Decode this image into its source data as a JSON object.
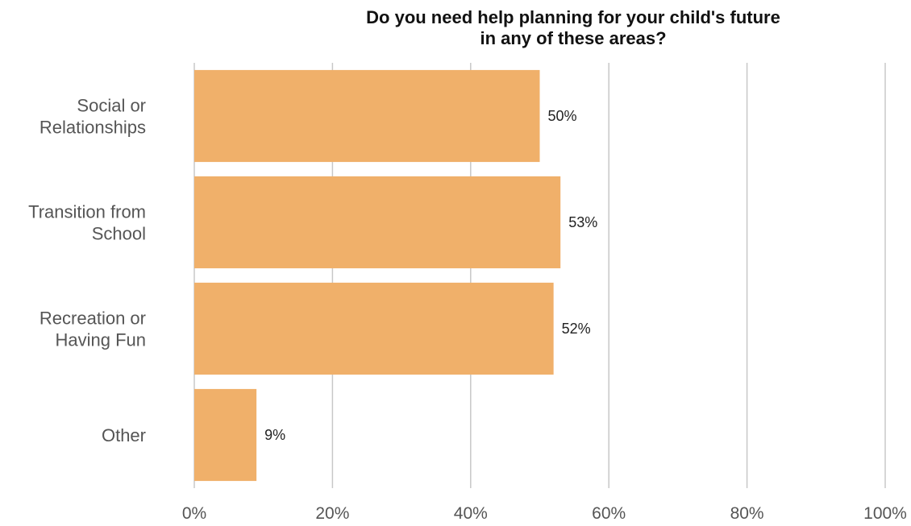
{
  "chart_data": {
    "type": "bar",
    "orientation": "horizontal",
    "title_lines": [
      "Do you need help planning for your child's future",
      "in any of these areas?"
    ],
    "categories": [
      [
        "Social or",
        "Relationships"
      ],
      [
        "Transition from",
        "School"
      ],
      [
        "Recreation or",
        "Having Fun"
      ],
      [
        "Other"
      ]
    ],
    "values": [
      50,
      53,
      52,
      9
    ],
    "data_labels": [
      "50%",
      "53%",
      "52%",
      "9%"
    ],
    "xlim": [
      0,
      100
    ],
    "x_ticks": [
      0,
      20,
      40,
      60,
      80,
      100
    ],
    "x_tick_labels": [
      "0%",
      "20%",
      "40%",
      "60%",
      "80%",
      "100%"
    ],
    "grid": true,
    "bar_color": "#f0b06a"
  }
}
